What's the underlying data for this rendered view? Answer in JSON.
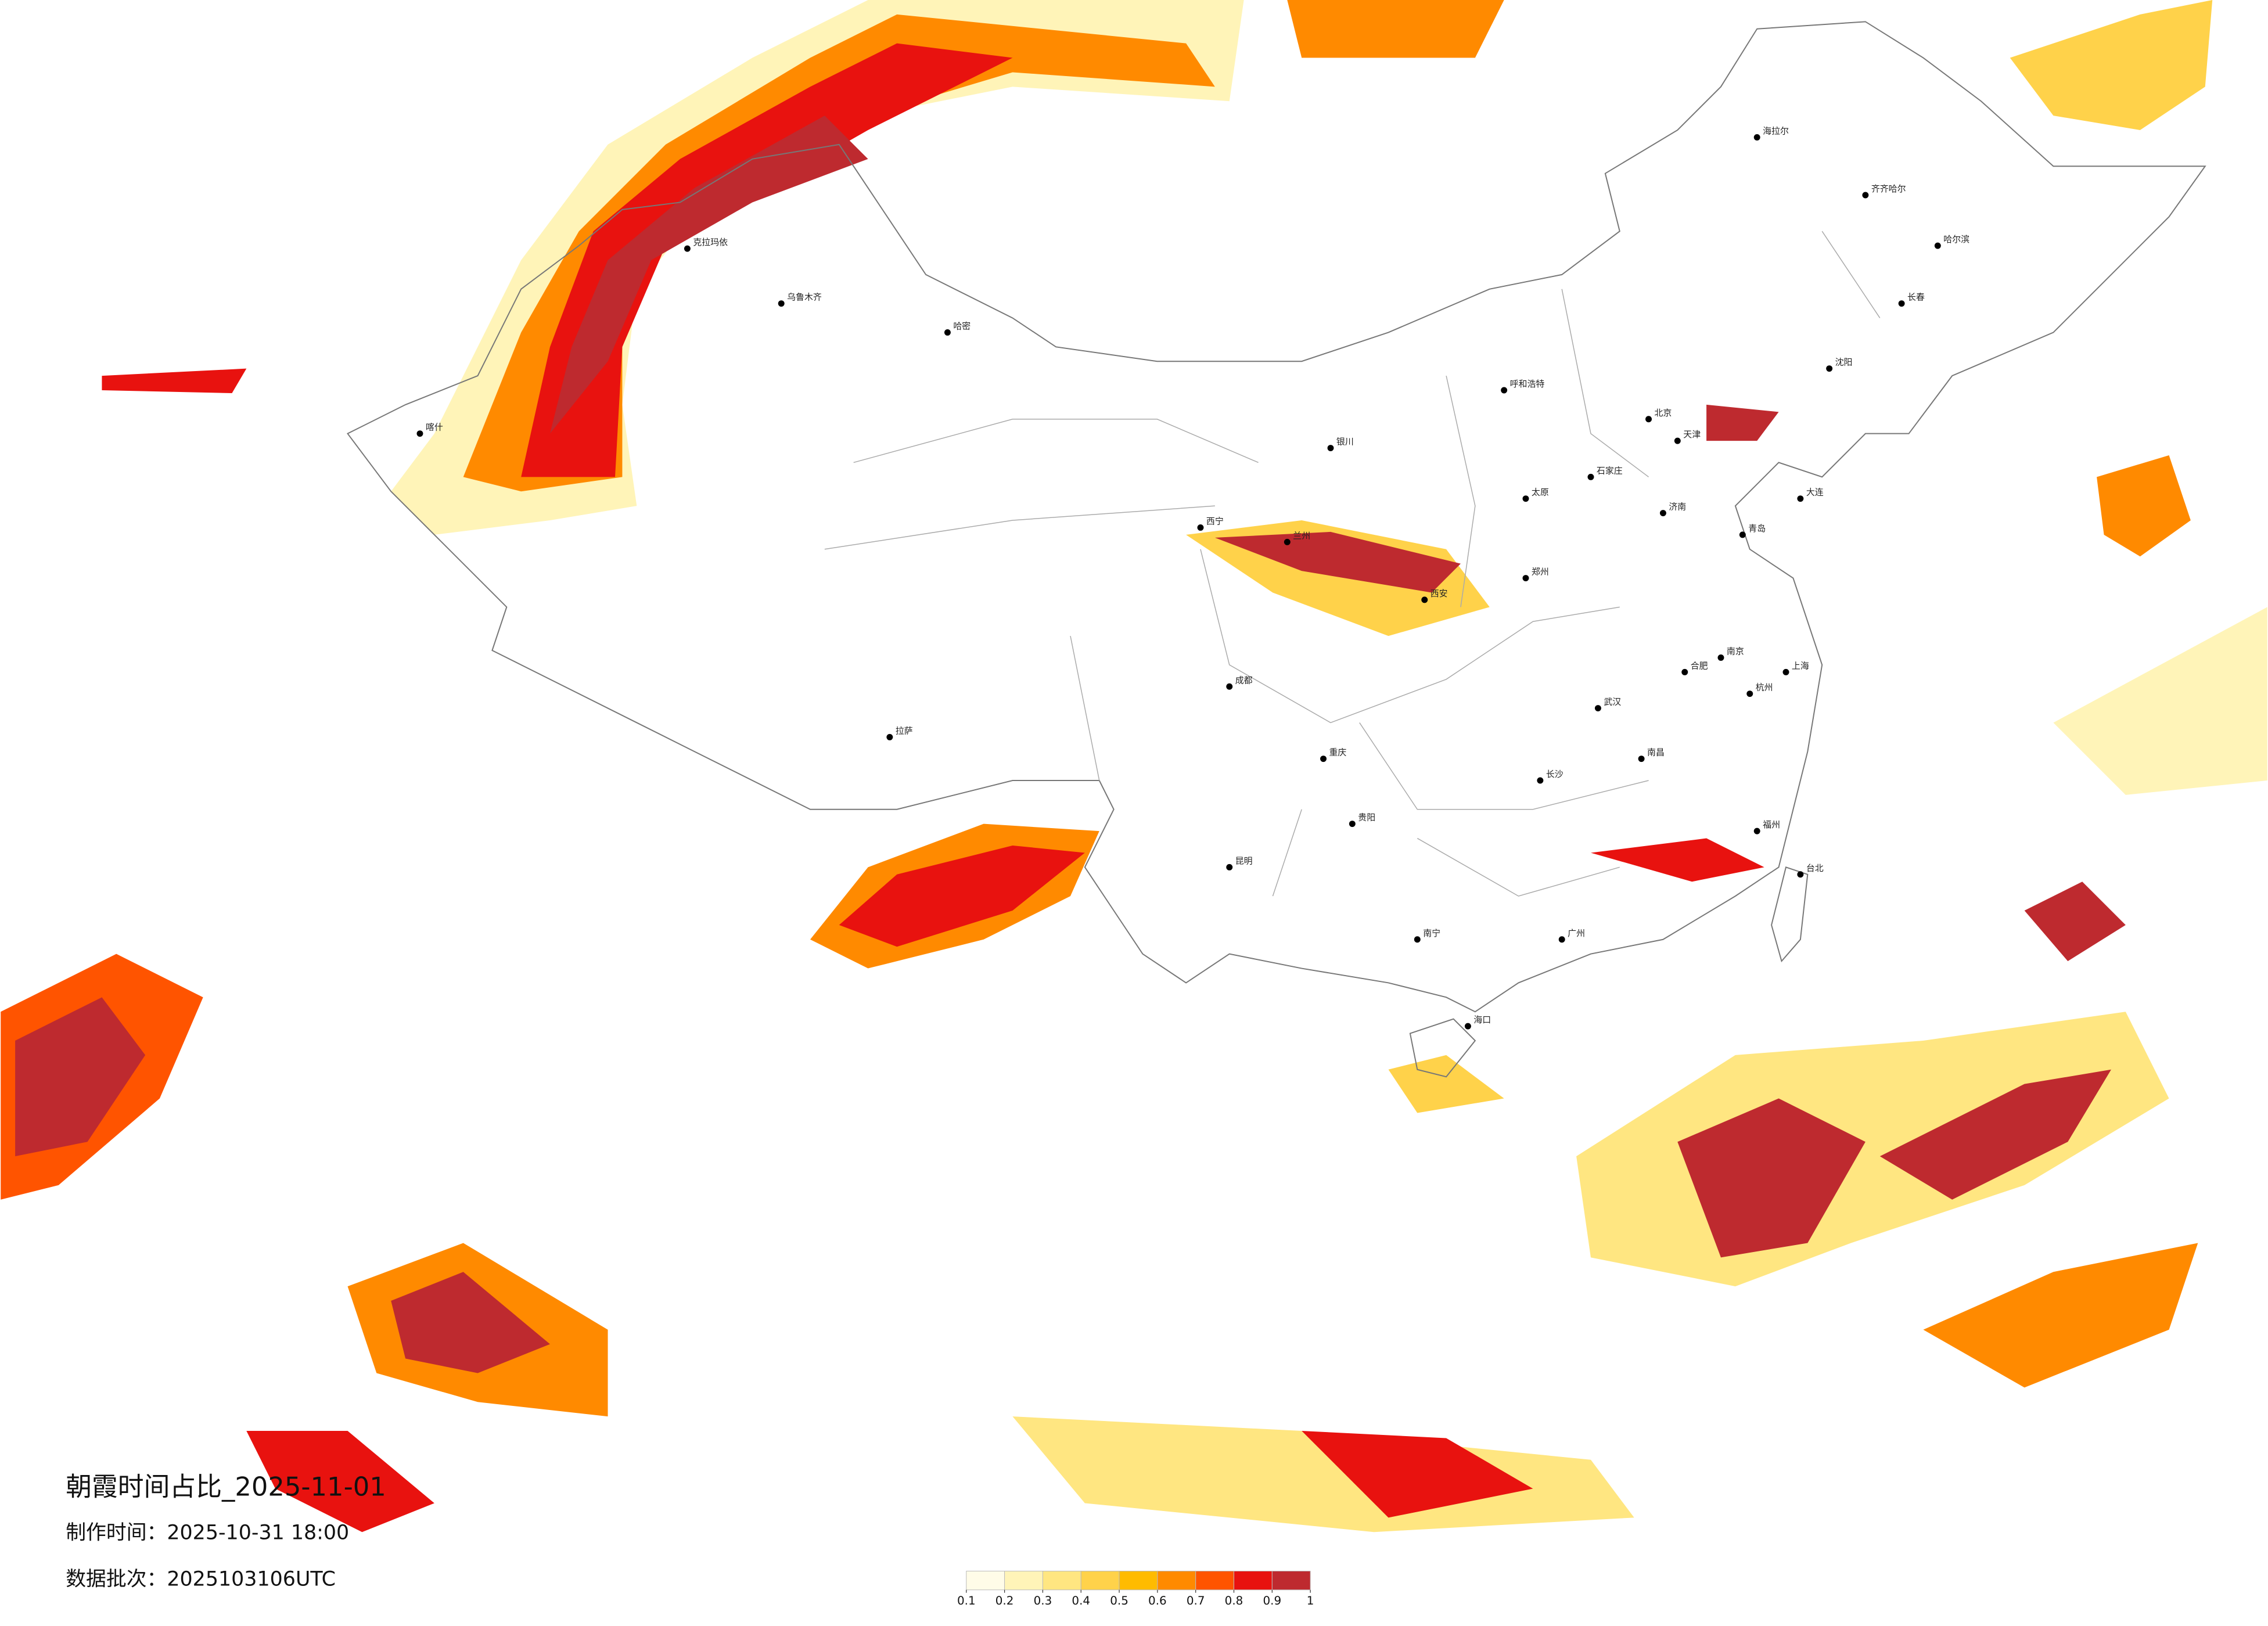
{
  "header": {
    "title": "朝霞时间占比_2025-11-01",
    "made_time": "制作时间：2025-10-31 18:00",
    "batch": "数据批次：2025103106UTC"
  },
  "legend": {
    "ticks": [
      0.1,
      0.2,
      0.3,
      0.4,
      0.5,
      0.6,
      0.7,
      0.8,
      0.9,
      1
    ],
    "colors": [
      "#fffce8",
      "#fff4b8",
      "#ffe681",
      "#ffd24a",
      "#ffbb00",
      "#ff8a00",
      "#ff5400",
      "#e8120f",
      "#be2a2f"
    ]
  },
  "cities": [
    "北京",
    "天津",
    "上海",
    "重庆",
    "成都",
    "西安",
    "武汉",
    "广州",
    "南京",
    "杭州",
    "长沙",
    "郑州",
    "沈阳",
    "哈尔滨",
    "长春",
    "乌鲁木齐",
    "拉萨",
    "兰州",
    "西宁",
    "银川",
    "呼和浩特",
    "昆明",
    "贵阳",
    "南宁",
    "海口",
    "福州",
    "南昌",
    "合肥",
    "济南",
    "石家庄",
    "太原",
    "台北",
    "喀什",
    "克拉玛依",
    "哈密",
    "海拉尔",
    "齐齐哈尔",
    "大连",
    "青岛"
  ]
}
